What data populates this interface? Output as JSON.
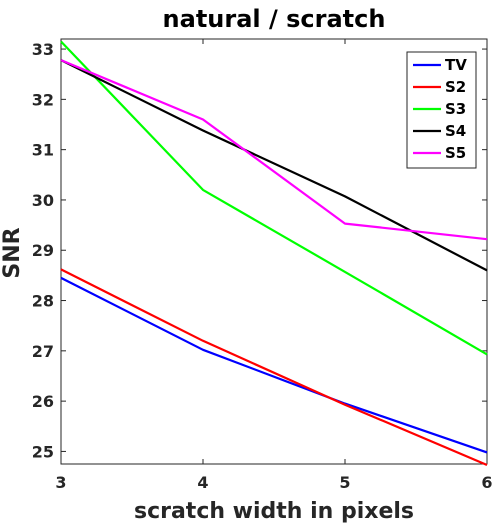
{
  "chart_data": {
    "type": "line",
    "title": "natural / scratch",
    "xlabel": "scratch width in pixels",
    "ylabel": "SNR",
    "x": [
      3,
      4,
      5,
      6
    ],
    "xlim": [
      3,
      6
    ],
    "ylim": [
      24.75,
      33.2
    ],
    "xticks": [
      3,
      4,
      5,
      6
    ],
    "yticks": [
      25,
      26,
      27,
      28,
      29,
      30,
      31,
      32,
      33
    ],
    "grid": false,
    "legend_position": "top-right",
    "series": [
      {
        "name": "TV",
        "color": "#0000ff",
        "values": [
          28.45,
          27.02,
          25.95,
          24.98
        ]
      },
      {
        "name": "S2",
        "color": "#ff0000",
        "values": [
          28.62,
          27.2,
          25.93,
          24.73
        ]
      },
      {
        "name": "S3",
        "color": "#00ff00",
        "values": [
          33.15,
          30.2,
          28.57,
          26.93
        ]
      },
      {
        "name": "S4",
        "color": "#000000",
        "values": [
          32.78,
          31.38,
          30.07,
          28.6
        ]
      },
      {
        "name": "S5",
        "color": "#ff00ff",
        "values": [
          32.78,
          31.6,
          29.53,
          29.22
        ]
      }
    ]
  }
}
